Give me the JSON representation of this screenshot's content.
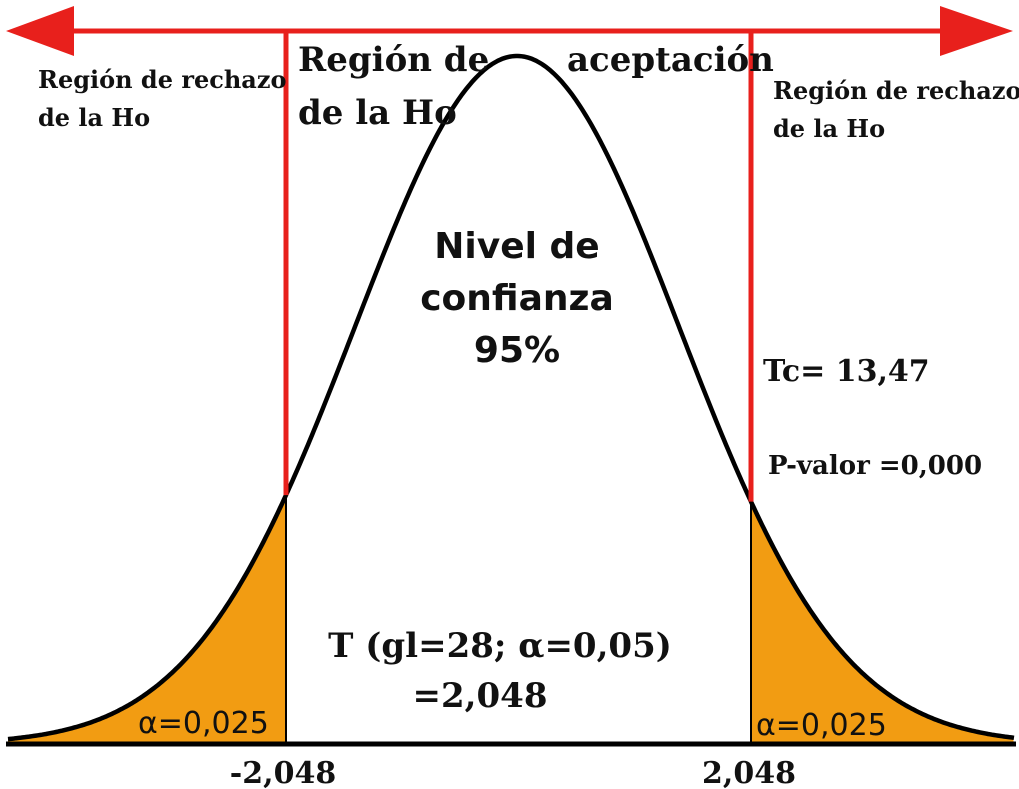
{
  "colors": {
    "region_lines": "#e8201c",
    "tail_fill": "#f29c12",
    "curve": "#000000",
    "text": "#111111"
  },
  "labels": {
    "reject_left": [
      "Región de rechazo",
      "de la Ho"
    ],
    "reject_right": [
      "Región de rechazo",
      "de la Ho"
    ],
    "accept_part1": "Región de",
    "accept_part2": "aceptación",
    "accept_line2": "de la Ho",
    "confidence": [
      "Nivel de",
      "confianza",
      "95%"
    ],
    "tc": "Tc= 13,47",
    "pvalue": "P-valor =0,000",
    "test": [
      "T (gl=28; α=0,05)",
      "=2,048"
    ],
    "alpha_left": "α=0,025",
    "alpha_right": "α=0,025",
    "crit_left": "-2,048",
    "crit_right": "2,048"
  },
  "distribution": {
    "type": "t",
    "df": 28,
    "alpha": 0.05,
    "alpha_per_tail": 0.025,
    "critical_values": [
      -2.048,
      2.048
    ],
    "confidence_level_percent": 95,
    "tc": 13.47,
    "p_value": 0.0
  }
}
